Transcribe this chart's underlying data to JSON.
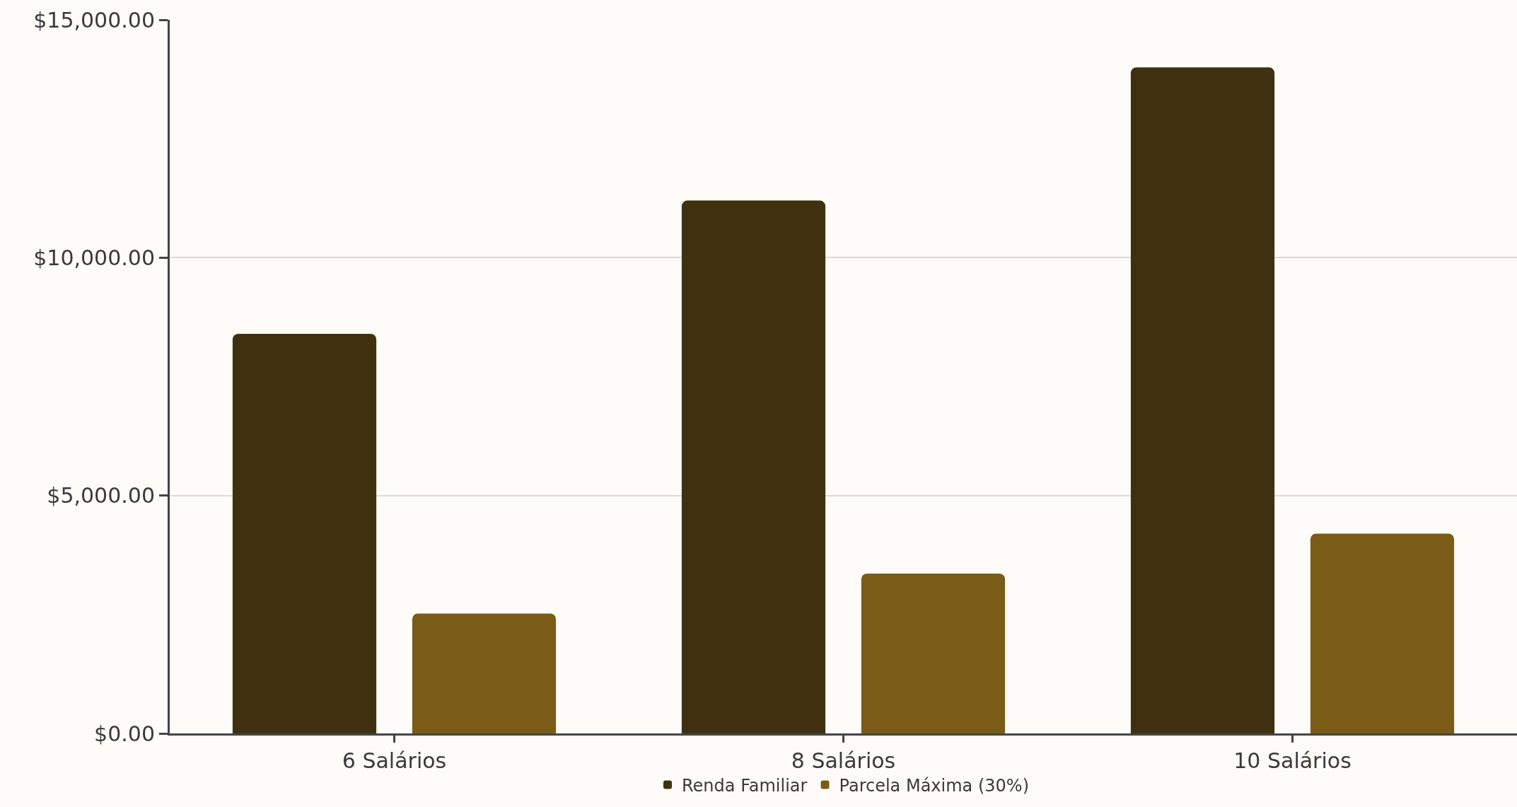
{
  "chart_data": {
    "type": "bar",
    "categories": [
      "6 Salários",
      "8 Salários",
      "10 Salários"
    ],
    "series": [
      {
        "name": "Renda Familiar",
        "color": "#3f3110",
        "values": [
          8400,
          11200,
          14000
        ]
      },
      {
        "name": "Parcela Máxima (30%)",
        "color": "#7a5c18",
        "values": [
          2520,
          3360,
          4200
        ]
      }
    ],
    "ylim": [
      0,
      15000
    ],
    "yticks": [
      {
        "value": 0,
        "label": "$0.00"
      },
      {
        "value": 5000,
        "label": "$5,000.00"
      },
      {
        "value": 10000,
        "label": "$10,000.00"
      },
      {
        "value": 15000,
        "label": "$15,000.00"
      }
    ],
    "grid": "y",
    "legend": "bottom"
  }
}
